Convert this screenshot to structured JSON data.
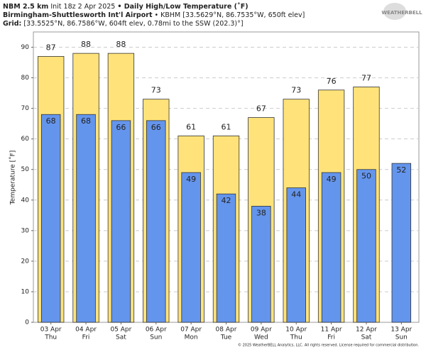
{
  "header": {
    "model": "NBM 2.5 km",
    "init": "Init 18z 2 Apr 2025",
    "station": "Birmingham-Shuttlesworth Int'l Airport",
    "station_info": "• KBHM [33.5629°N, 86.7535°W, 650ft elev]",
    "grid_label": "Grid:",
    "grid_info": "[33.5525°N, 86.7586°W, 604ft elev, 0.78mi to the SSW (202.3)°]",
    "logo": "WEATHERBELL"
  },
  "chart_data": {
    "type": "bar",
    "title": "• Daily High/Low Temperature (˚F)",
    "y_label": "Temperature [˚F]",
    "categories": [
      "03 Apr",
      "04 Apr",
      "05 Apr",
      "06 Apr",
      "07 Apr",
      "08 Apr",
      "09 Apr",
      "10 Apr",
      "11 Apr",
      "12 Apr",
      "13 Apr"
    ],
    "weekdays": [
      "Thu",
      "Fri",
      "Sat",
      "Sun",
      "Mon",
      "Tue",
      "Wed",
      "Thu",
      "Fri",
      "Sat",
      "Sun"
    ],
    "series": [
      {
        "name": "High",
        "color": "#ffe37a",
        "values": [
          87,
          88,
          88,
          73,
          61,
          61,
          67,
          73,
          76,
          77,
          null
        ]
      },
      {
        "name": "Low",
        "color": "#6495ed",
        "values": [
          68,
          68,
          66,
          66,
          49,
          42,
          38,
          44,
          49,
          50,
          52
        ]
      }
    ],
    "ylim": [
      0,
      95
    ],
    "yticks": [
      0,
      10,
      20,
      30,
      40,
      50,
      60,
      70,
      80,
      90
    ],
    "grid": true
  },
  "footer": "© 2025 WeatherBELL Analytics, LLC. All rights reserved. License required for commercial distribution."
}
